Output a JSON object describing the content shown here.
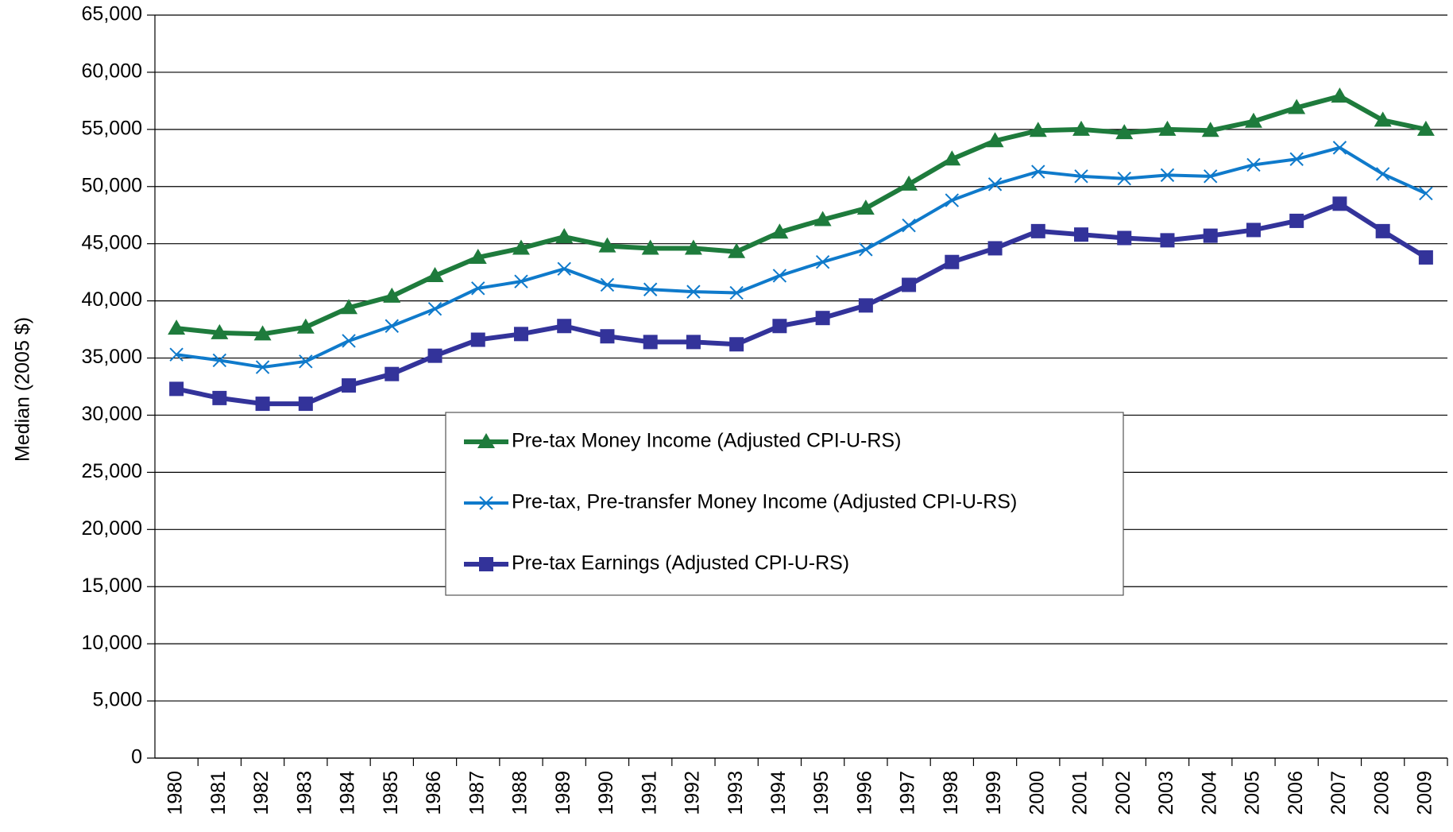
{
  "chart_data": {
    "type": "line",
    "y_label": "Median (2005 $)",
    "categories": [
      "1980",
      "1981",
      "1982",
      "1983",
      "1984",
      "1985",
      "1986",
      "1987",
      "1988",
      "1989",
      "1990",
      "1991",
      "1992",
      "1993",
      "1994",
      "1995",
      "1996",
      "1997",
      "1998",
      "1999",
      "2000",
      "2001",
      "2002",
      "2003",
      "2004",
      "2005",
      "2006",
      "2007",
      "2008",
      "2009"
    ],
    "series": [
      {
        "name": "Pre-tax Money Income (Adjusted CPI-U-RS)",
        "color": "#1e7b3c",
        "marker": "triangle",
        "values": [
          37600,
          37200,
          37100,
          37700,
          39400,
          40400,
          42200,
          43800,
          44600,
          45600,
          44800,
          44600,
          44600,
          44300,
          46000,
          47100,
          48100,
          50200,
          52400,
          54000,
          54900,
          55000,
          54700,
          55000,
          54900,
          55700,
          56900,
          57900,
          55800,
          55000
        ]
      },
      {
        "name": "Pre-tax, Pre-transfer Money Income (Adjusted CPI-U-RS)",
        "color": "#0f7acb",
        "marker": "x",
        "values": [
          35300,
          34800,
          34200,
          34700,
          36500,
          37800,
          39300,
          41100,
          41700,
          42800,
          41400,
          41000,
          40800,
          40700,
          42200,
          43400,
          44500,
          46600,
          48800,
          50200,
          51300,
          50900,
          50700,
          51000,
          50900,
          51900,
          52400,
          53400,
          51100,
          49400
        ]
      },
      {
        "name": "Pre-tax Earnings (Adjusted CPI-U-RS)",
        "color": "#33339a",
        "marker": "square",
        "values": [
          32300,
          31500,
          31000,
          31000,
          32600,
          33600,
          35200,
          36600,
          37100,
          37800,
          36900,
          36400,
          36400,
          36200,
          37800,
          38500,
          39600,
          41400,
          43400,
          44600,
          46100,
          45800,
          45500,
          45300,
          45700,
          46200,
          47000,
          48500,
          46100,
          43800
        ]
      }
    ],
    "ylim": [
      0,
      65000
    ],
    "yticks": [
      0,
      {
        "value": 5000,
        "label": "5,000"
      },
      {
        "value": 10000,
        "label": "10,000"
      },
      {
        "value": 15000,
        "label": "15,000"
      },
      {
        "value": 20000,
        "label": "20,000"
      },
      {
        "value": 25000,
        "label": "25,000"
      },
      {
        "value": 30000,
        "label": "30,000"
      },
      {
        "value": 35000,
        "label": "35,000"
      },
      {
        "value": 40000,
        "label": "40,000"
      },
      {
        "value": 45000,
        "label": "45,000"
      },
      {
        "value": 50000,
        "label": "50,000"
      },
      {
        "value": 55000,
        "label": "55,000"
      },
      {
        "value": 60000,
        "label": "60,000"
      },
      {
        "value": 65000,
        "label": "65,000"
      }
    ],
    "grid": true
  }
}
